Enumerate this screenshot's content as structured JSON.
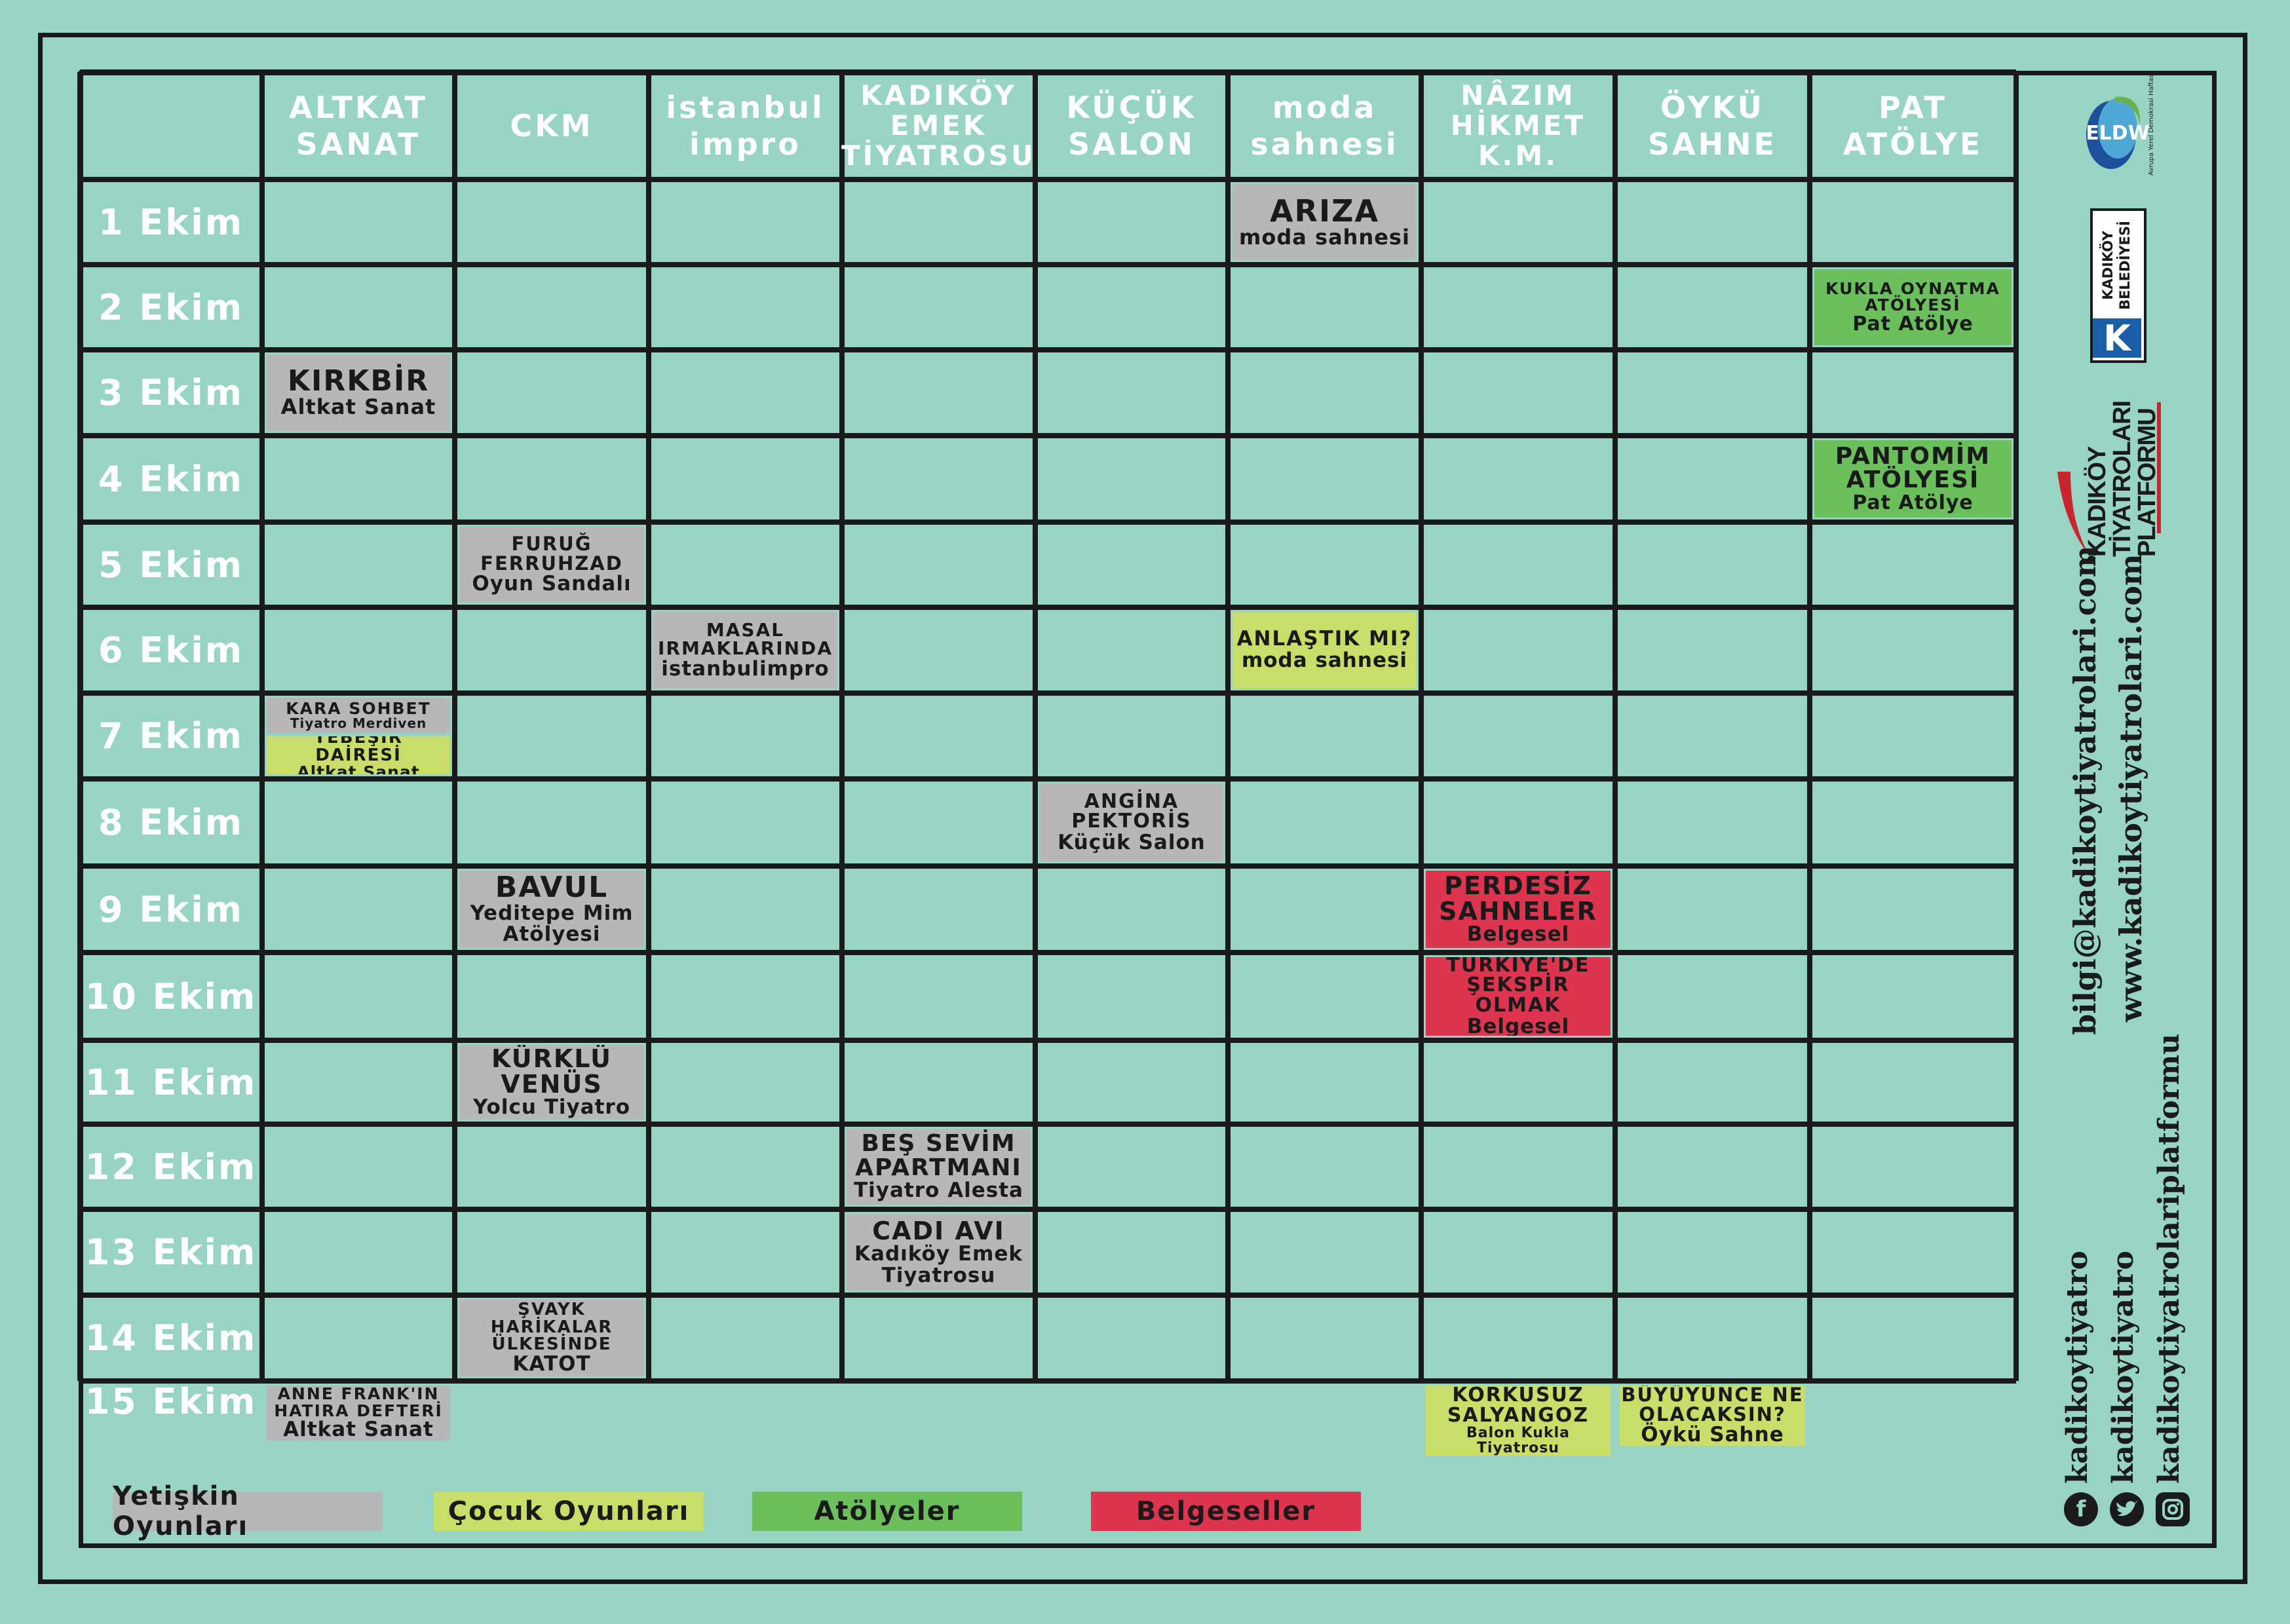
{
  "venues": [
    "ALTKAT\nSANAT",
    "CKM",
    "istanbul\nimpro",
    "KADIKÖY\nEMEK\nTİYATROSU",
    "KÜÇÜK\nSALON",
    "moda\nsahnesi",
    "NÂZIM\nHİKMET\nK.M.",
    "ÖYKÜ\nSAHNE",
    "PAT\nATÖLYE"
  ],
  "dates": [
    "1 Ekim",
    "2 Ekim",
    "3 Ekim",
    "4 Ekim",
    "5 Ekim",
    "6 Ekim",
    "7 Ekim",
    "8 Ekim",
    "9 Ekim",
    "10 Ekim",
    "11 Ekim",
    "12 Ekim",
    "13 Ekim",
    "14 Ekim",
    "15 Ekim"
  ],
  "colors": {
    "background": "#98d4c3",
    "adult": "#b7b7b7",
    "child": "#c9dd69",
    "workshop": "#6cbf5d",
    "documentary": "#dd3450",
    "line": "#1a1a1a"
  },
  "events": [
    {
      "row": 0,
      "col": 5,
      "cat": "adult",
      "title": "ARIZA",
      "sub": "moda sahnesi",
      "ts": 46,
      "ss": 32
    },
    {
      "row": 1,
      "col": 8,
      "cat": "workshop",
      "title": "KUKLA OYNATMA\nATÖLYESİ",
      "sub": "Pat Atölye",
      "ts": 25,
      "ss": 30
    },
    {
      "row": 2,
      "col": 0,
      "cat": "adult",
      "title": "KIRKBİR",
      "sub": "Altkat Sanat",
      "ts": 44,
      "ss": 32
    },
    {
      "row": 3,
      "col": 8,
      "cat": "workshop",
      "title": "PANTOMİM\nATÖLYESİ",
      "sub": "Pat Atölye",
      "ts": 36,
      "ss": 30
    },
    {
      "row": 4,
      "col": 1,
      "cat": "adult",
      "title": "FURUĞ\nFERRUHZAD",
      "sub": "Oyun Sandalı",
      "ts": 29,
      "ss": 31
    },
    {
      "row": 5,
      "col": 2,
      "cat": "adult",
      "title": "MASAL\nIRMAKLARINDA",
      "sub": "istanbulimpro",
      "ts": 28,
      "ss": 31
    },
    {
      "row": 5,
      "col": 5,
      "cat": "child",
      "title": "ANLAŞTIK MI?",
      "sub": "moda sahnesi",
      "ts": 31,
      "ss": 31
    },
    {
      "row": 7,
      "col": 4,
      "cat": "adult",
      "title": "ANGİNA\nPEKTORİS",
      "sub": "Küçük Salon",
      "ts": 30,
      "ss": 31
    },
    {
      "row": 8,
      "col": 1,
      "cat": "adult",
      "title": "BAVUL",
      "sub": "Yeditepe Mim\nAtölyesi",
      "ts": 44,
      "ss": 31
    },
    {
      "row": 8,
      "col": 6,
      "cat": "documentary",
      "title": "PERDESİZ\nSAHNELER",
      "sub": "Belgesel",
      "ts": 38,
      "ss": 31
    },
    {
      "row": 9,
      "col": 6,
      "cat": "documentary",
      "title": "TÜRKİYE'DE\nŞEKSPİR OLMAK",
      "sub": "Belgesel",
      "ts": 30,
      "ss": 31
    },
    {
      "row": 10,
      "col": 1,
      "cat": "adult",
      "title": "KÜRKLÜ\nVENÜS",
      "sub": "Yolcu Tiyatro",
      "ts": 38,
      "ss": 31
    },
    {
      "row": 11,
      "col": 3,
      "cat": "adult",
      "title": "BEŞ SEVİM\nAPARTMANI",
      "sub": "Tiyatro Alesta",
      "ts": 36,
      "ss": 31
    },
    {
      "row": 12,
      "col": 3,
      "cat": "adult",
      "title": "CADI AVI",
      "sub": "Kadıköy Emek\nTiyatrosu",
      "ts": 38,
      "ss": 31
    },
    {
      "row": 13,
      "col": 1,
      "cat": "adult",
      "title": "ŞVAYK HARİKALAR\nÜLKESİNDE",
      "sub": "KATOT",
      "ts": 26,
      "ss": 31
    },
    {
      "row": 14,
      "col": 0,
      "cat": "adult",
      "title": "ANNE FRANK'IN\nHATIRA DEFTERİ",
      "sub": "Altkat Sanat",
      "ts": 25,
      "ss": 31
    },
    {
      "row": 14,
      "col": 6,
      "cat": "child",
      "title": "KORKUSUZ\nSALYANGOZ",
      "sub": "Balon Kukla\nTiyatrosu",
      "ts": 30,
      "ss": 22
    },
    {
      "row": 14,
      "col": 7,
      "cat": "child",
      "title": "BÜYÜYÜNCE NE\nOLACAKSIN?",
      "sub": "Öykü Sahne",
      "ts": 29,
      "ss": 31
    }
  ],
  "split_events": [
    {
      "row": 6,
      "col": 0,
      "half": "top",
      "cat": "adult",
      "title": "KARA SOHBET",
      "sub": "Tiyatro Merdiven",
      "ts": 25,
      "ss": 20
    },
    {
      "row": 6,
      "col": 0,
      "half": "bottom",
      "cat": "child",
      "title": "TEBEŞİR\nDAİRESİ",
      "sub": "Altkat Sanat",
      "ts": 26,
      "ss": 25
    }
  ],
  "legend": [
    {
      "label": "Yetişkin Oyunları",
      "cat": "adult"
    },
    {
      "label": "Çocuk Oyunları",
      "cat": "child"
    },
    {
      "label": "Atölyeler",
      "cat": "workshop"
    },
    {
      "label": "Belgeseller",
      "cat": "documentary"
    }
  ],
  "sidebar": {
    "logo_eldw": "ELDW",
    "logo_eldw_caption": "Avrupa Yerel Demokrasi Haftası",
    "logo_belediye": "KADIKÖY\nBELEDİYESİ",
    "platform_logo": "KADIKÖY\nTİYATROLARI\nPLATFORMU",
    "email": "bilgi@kadikoytiyatrolari.com",
    "website": "www.kadikoytiyatrolari.com",
    "facebook": "kadikoytiyatro",
    "twitter": "kadikoytiyatro",
    "instagram": "kadikoytiyatrolariplatformu"
  }
}
